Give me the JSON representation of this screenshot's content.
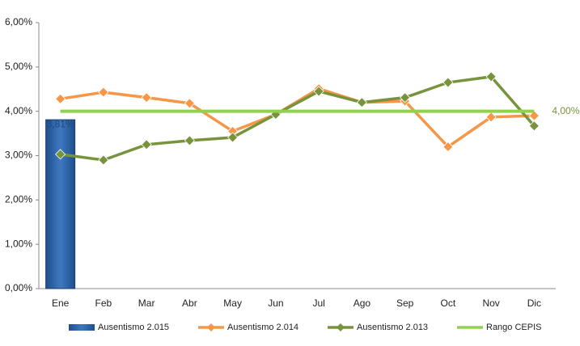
{
  "chart_data": {
    "type": "combo",
    "categories": [
      "Ene",
      "Feb",
      "Mar",
      "Abr",
      "May",
      "Jun",
      "Jul",
      "Ago",
      "Sep",
      "Oct",
      "Nov",
      "Dic"
    ],
    "ylim": [
      0,
      6
    ],
    "yticks": [
      {
        "value": 0,
        "label": "0,00%"
      },
      {
        "value": 1,
        "label": "1,00%"
      },
      {
        "value": 2,
        "label": "2,00%"
      },
      {
        "value": 3,
        "label": "3,00%"
      },
      {
        "value": 4,
        "label": "4,00%"
      },
      {
        "value": 5,
        "label": "5,00%"
      },
      {
        "value": 6,
        "label": "6,00%"
      }
    ],
    "grid": false,
    "legend": "bottom",
    "series": [
      {
        "name": "Ausentismo 2.015",
        "type": "bar",
        "color": "#2e62a8",
        "values": [
          3.81,
          null,
          null,
          null,
          null,
          null,
          null,
          null,
          null,
          null,
          null,
          null
        ],
        "value_labels": [
          "3,81%",
          null,
          null,
          null,
          null,
          null,
          null,
          null,
          null,
          null,
          null,
          null
        ]
      },
      {
        "name": "Ausentismo 2.014",
        "type": "line",
        "marker": true,
        "color": "#f79646",
        "values": [
          4.28,
          4.43,
          4.31,
          4.18,
          3.55,
          3.93,
          4.51,
          4.2,
          4.23,
          3.2,
          3.87,
          3.9
        ]
      },
      {
        "name": "Ausentismo 2.013",
        "type": "line",
        "marker": true,
        "color": "#77933c",
        "values": [
          3.03,
          2.9,
          3.25,
          3.34,
          3.41,
          3.93,
          4.45,
          4.2,
          4.31,
          4.65,
          4.78,
          3.67
        ]
      },
      {
        "name": "Rango CEPIS",
        "type": "line",
        "marker": false,
        "color": "#92d050",
        "values": [
          4,
          4,
          4,
          4,
          4,
          4,
          4,
          4,
          4,
          4,
          4,
          4
        ],
        "value_labels": [
          null,
          null,
          null,
          null,
          null,
          null,
          null,
          null,
          null,
          null,
          null,
          "4,00%"
        ]
      }
    ]
  }
}
